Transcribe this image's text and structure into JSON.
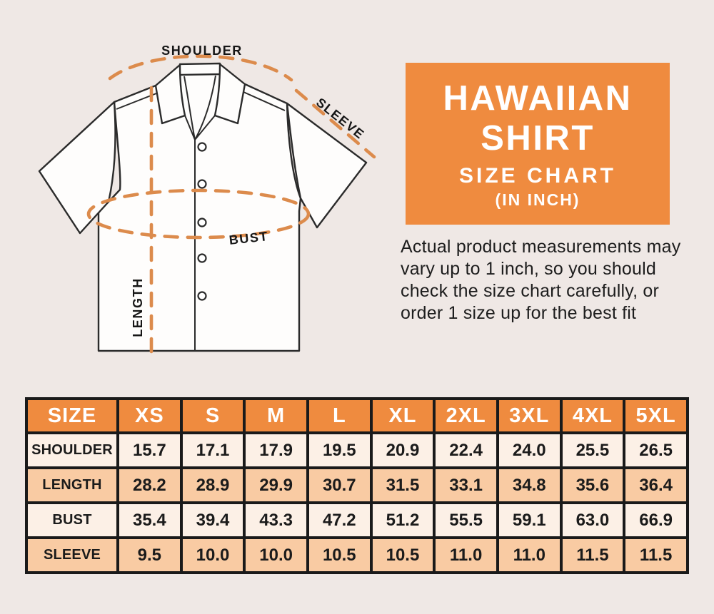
{
  "colors": {
    "background": "#efe8e5",
    "accent_orange": "#ef8b3f",
    "dash_orange": "#dc8b4c",
    "row_cream": "#fcf0e6",
    "row_peach": "#f9cba3",
    "table_border": "#1a1a1a"
  },
  "diagram": {
    "labels": {
      "shoulder": "SHOULDER",
      "sleeve": "SLEEVE",
      "bust": "BUST",
      "length": "LENGTH"
    }
  },
  "info_panel": {
    "title_line1": "HAWAIIAN",
    "title_line2": "SHIRT",
    "subtitle": "SIZE CHART",
    "unit_note": "(IN INCH)"
  },
  "description": "Actual product measurements may vary up to 1 inch, so you should check the size chart carefully, or order 1 size up for the best fit",
  "chart_data": {
    "type": "table",
    "columns": [
      "SIZE",
      "XS",
      "S",
      "M",
      "L",
      "XL",
      "2XL",
      "3XL",
      "4XL",
      "5XL"
    ],
    "rows": [
      {
        "label": "SHOULDER",
        "values": [
          "15.7",
          "17.1",
          "17.9",
          "19.5",
          "20.9",
          "22.4",
          "24.0",
          "25.5",
          "26.5"
        ]
      },
      {
        "label": "LENGTH",
        "values": [
          "28.2",
          "28.9",
          "29.9",
          "30.7",
          "31.5",
          "33.1",
          "34.8",
          "35.6",
          "36.4"
        ]
      },
      {
        "label": "BUST",
        "values": [
          "35.4",
          "39.4",
          "43.3",
          "47.2",
          "51.2",
          "55.5",
          "59.1",
          "63.0",
          "66.9"
        ]
      },
      {
        "label": "SLEEVE",
        "values": [
          "9.5",
          "10.0",
          "10.0",
          "10.5",
          "10.5",
          "11.0",
          "11.0",
          "11.5",
          "11.5"
        ]
      }
    ]
  }
}
